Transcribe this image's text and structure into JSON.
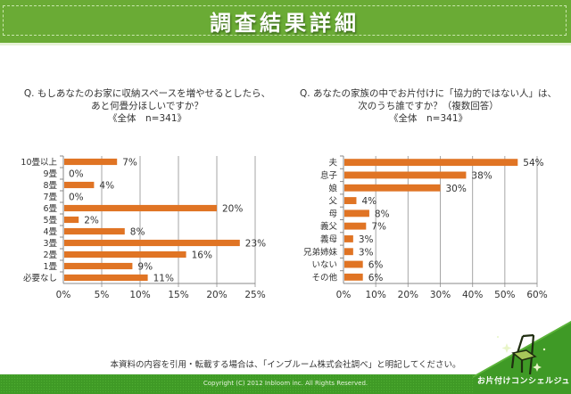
{
  "header": {
    "title": "調査結果詳細"
  },
  "notice": "本資料の内容を引用・転載する場合は、「インブルーム株式会社調べ」と明記してください。",
  "footer": {
    "copyright": "Copyright (C) 2012 Inbloom inc. All Rights Reserved.",
    "logo_text": "お片付けコンシェルジュ"
  },
  "colors": {
    "header_green": "#6aab35",
    "footer_green": "#3f9a26",
    "bar_orange": "#e07424",
    "grid": "#a6a6a6"
  },
  "chart_data": [
    {
      "type": "bar",
      "orientation": "horizontal",
      "title_lines": [
        "Q. もしあなたのお家に収納スペースを増やせるとしたら、",
        "あと何畳分ほしいですか？",
        "《全体　n=341》"
      ],
      "categories": [
        "10畳以上",
        "9畳",
        "8畳",
        "7畳",
        "6畳",
        "5畳",
        "4畳",
        "3畳",
        "2畳",
        "1畳",
        "必要なし"
      ],
      "values": [
        7,
        0,
        4,
        0,
        20,
        2,
        8,
        23,
        16,
        9,
        11
      ],
      "value_labels": [
        "7%",
        "0%",
        "4%",
        "0%",
        "20%",
        "2%",
        "8%",
        "23%",
        "16%",
        "9%",
        "11%"
      ],
      "xlim": [
        0,
        25
      ],
      "xticks": [
        "0%",
        "5%",
        "10%",
        "15%",
        "20%",
        "25%"
      ],
      "xtick_values": [
        0,
        5,
        10,
        15,
        20,
        25
      ],
      "grid": true,
      "xlabel": "",
      "ylabel": ""
    },
    {
      "type": "bar",
      "orientation": "horizontal",
      "title_lines": [
        "Q. あなたの家族の中でお片付けに「協力的ではない人」は、",
        "次のうち誰ですか？（複数回答）",
        "《全体　n=341》"
      ],
      "categories": [
        "夫",
        "息子",
        "娘",
        "父",
        "母",
        "義父",
        "義母",
        "兄弟姉妹",
        "いない",
        "その他"
      ],
      "values": [
        54,
        38,
        30,
        4,
        8,
        7,
        3,
        3,
        6,
        6
      ],
      "value_labels": [
        "54%",
        "38%",
        "30%",
        "4%",
        "8%",
        "7%",
        "3%",
        "3%",
        "6%",
        "6%"
      ],
      "xlim": [
        0,
        60
      ],
      "xticks": [
        "0%",
        "10%",
        "20%",
        "30%",
        "40%",
        "50%",
        "60%"
      ],
      "xtick_values": [
        0,
        10,
        20,
        30,
        40,
        50,
        60
      ],
      "grid": true,
      "xlabel": "",
      "ylabel": ""
    }
  ]
}
